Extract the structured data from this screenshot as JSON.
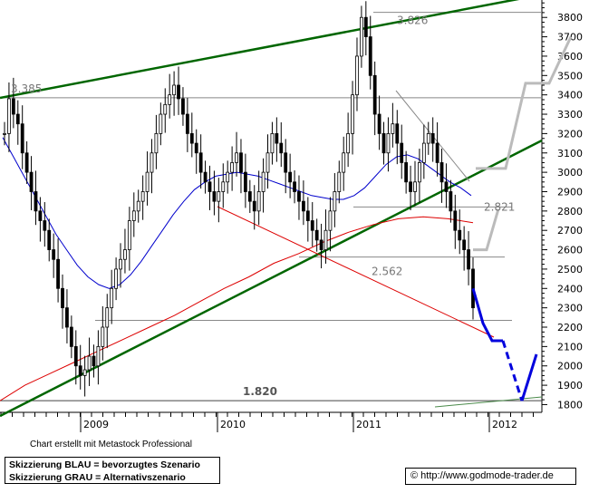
{
  "footer": {
    "credit": "Chart erstellt mit Metastock Professional",
    "legend_blue": "Skizzierung BLAU = bevorzugtes Szenario",
    "legend_gray": "Skizzierung GRAU = Alternativszenario",
    "source": "© http://www.godmode-trader.de"
  },
  "chart_data": {
    "type": "line",
    "title": "",
    "xlabel": "",
    "ylabel": "",
    "ylim": [
      1760,
      3890
    ],
    "y_ticks": [
      1800,
      1900,
      2000,
      2100,
      2200,
      2300,
      2400,
      2500,
      2600,
      2700,
      2800,
      2900,
      3000,
      3100,
      3200,
      3300,
      3400,
      3500,
      3600,
      3700,
      3800
    ],
    "x_tick_labels": [
      "2009",
      "2010",
      "2011",
      "2012"
    ],
    "grid": false,
    "horizontal_levels": [
      {
        "label": "3.826",
        "value": 3826
      },
      {
        "label": "3.385",
        "value": 3385
      },
      {
        "label": "2.821",
        "value": 2821
      },
      {
        "label": "2.562",
        "value": 2562
      },
      {
        "label": "1.820",
        "value": 1820
      },
      {
        "label": "",
        "value": 2235
      }
    ],
    "colors": {
      "price": "#000000",
      "ma_blue": "#0000cc",
      "ma_red": "#dd0000",
      "trend_green": "#006600",
      "scenario_blue": "#0000dd",
      "scenario_gray": "#bbbbbb",
      "level_line": "#888888"
    },
    "series": [
      {
        "values": [
          3200,
          3380,
          3300,
          3250,
          3100,
          3000,
          2900,
          2800,
          2750,
          2700,
          2600,
          2550,
          2400,
          2300,
          2200,
          2100,
          2000,
          1950,
          1980,
          2050,
          2000,
          2100,
          2200,
          2300,
          2400,
          2500,
          2550,
          2600,
          2750,
          2800,
          2850,
          2900,
          3000,
          3100,
          3200,
          3300,
          3350,
          3400,
          3450,
          3380,
          3300,
          3200,
          3150,
          3100,
          3000,
          2950,
          2900,
          2850,
          2900,
          2950,
          3000,
          3050,
          3100,
          3000,
          2900,
          2850,
          2800,
          2900,
          3000,
          3100,
          3200,
          3150,
          3100,
          3000,
          2950,
          2900,
          2850,
          2800,
          2750,
          2700,
          2650,
          2600,
          2700,
          2800,
          2900,
          3000,
          3100,
          3200,
          3400,
          3600,
          3800,
          3700,
          3500,
          3300,
          3200,
          3100,
          3200,
          3250,
          3150,
          3050,
          2950,
          2900,
          2950,
          3050,
          3150,
          3200,
          3150,
          3050,
          2950,
          2900,
          2800,
          2700,
          2650,
          2600,
          2500,
          2300
        ]
      },
      {
        "values": [
          3180,
          3080,
          2980,
          2880,
          2780,
          2680,
          2600,
          2520,
          2460,
          2420,
          2400,
          2420,
          2470,
          2540,
          2620,
          2700,
          2780,
          2850,
          2910,
          2950,
          2980,
          2990,
          3000,
          2990,
          2980,
          2960,
          2940,
          2920,
          2900,
          2880,
          2870,
          2860,
          2860,
          2880,
          2920,
          2980,
          3040,
          3080,
          3090,
          3070,
          3030,
          2990,
          2950,
          2920,
          2880
        ]
      },
      {
        "values": [
          1820,
          1900,
          1960,
          2020,
          2080,
          2140,
          2200,
          2260,
          2330,
          2400,
          2460,
          2530,
          2580,
          2640,
          2690,
          2730,
          2760,
          2770,
          2760,
          2740
        ]
      },
      {
        "values": [
          2400,
          2220,
          2130,
          2130,
          1820,
          2060
        ]
      },
      {
        "values": [
          2600,
          2600,
          2810,
          3020,
          3020,
          3460,
          3460,
          3700
        ]
      }
    ]
  }
}
